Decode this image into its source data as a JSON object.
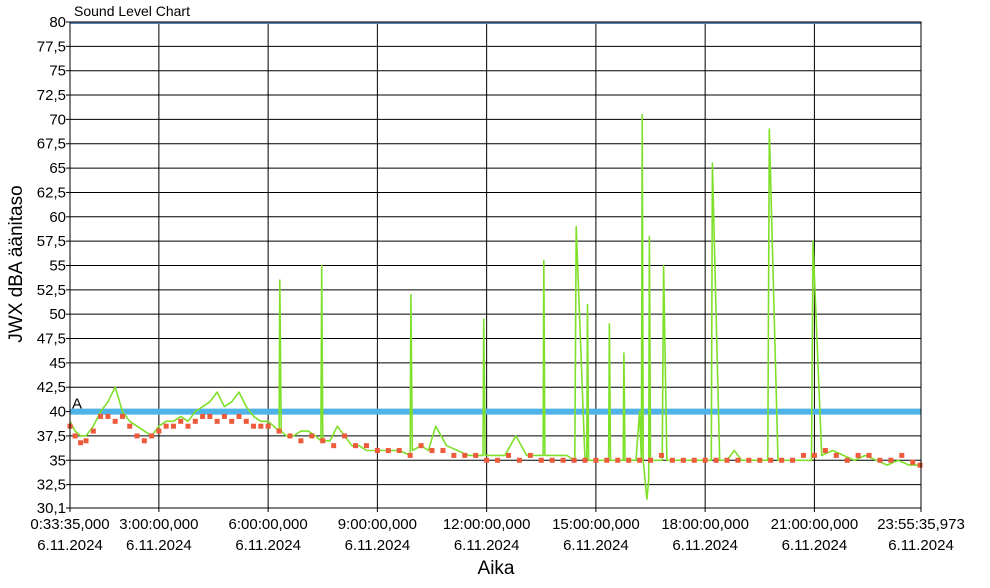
{
  "chart_data": {
    "type": "line",
    "title": "Sound Level Chart",
    "xlabel": "Aika",
    "ylabel": "JWX dBA äänitaso",
    "ylim": [
      30.1,
      80
    ],
    "y_ticks": [
      "30,1",
      "32,5",
      "35",
      "37,5",
      "40",
      "42,5",
      "45",
      "47,5",
      "50",
      "52,5",
      "55",
      "57,5",
      "60",
      "62,5",
      "65",
      "67,5",
      "70",
      "72,5",
      "75",
      "77,5",
      "80"
    ],
    "y_tick_values": [
      30.1,
      32.5,
      35,
      37.5,
      40,
      42.5,
      45,
      47.5,
      50,
      52.5,
      55,
      57.5,
      60,
      62.5,
      65,
      67.5,
      70,
      72.5,
      75,
      77.5,
      80
    ],
    "x_range_hours": [
      0.5597,
      23.9267
    ],
    "x_ticks": [
      {
        "time": "0:33:35,000",
        "date": "6.11.2024",
        "hour": 0.5597
      },
      {
        "time": "3:00:00,000",
        "date": "6.11.2024",
        "hour": 3
      },
      {
        "time": "6:00:00,000",
        "date": "6.11.2024",
        "hour": 6
      },
      {
        "time": "9:00:00,000",
        "date": "6.11.2024",
        "hour": 9
      },
      {
        "time": "12:00:00,000",
        "date": "6.11.2024",
        "hour": 12
      },
      {
        "time": "15:00:00,000",
        "date": "6.11.2024",
        "hour": 15
      },
      {
        "time": "18:00:00,000",
        "date": "6.11.2024",
        "hour": 18
      },
      {
        "time": "21:00:00,000",
        "date": "6.11.2024",
        "hour": 21
      },
      {
        "time": "23:55:35,973",
        "date": "6.11.2024",
        "hour": 23.9267
      }
    ],
    "threshold": {
      "value": 40,
      "label": "A",
      "color": "#4fb3e8"
    },
    "grid": true,
    "colors": {
      "line": "#7fe02a",
      "marker": "#ee5a3c",
      "grid": "#000000",
      "top_line": "#5a7fb0"
    },
    "series": [
      {
        "kind": "peak-line",
        "x": [
          0.56,
          0.7,
          0.85,
          1.0,
          1.2,
          1.4,
          1.6,
          1.8,
          2.0,
          2.2,
          2.4,
          2.6,
          2.8,
          3.0,
          3.2,
          3.4,
          3.6,
          3.8,
          4.0,
          4.2,
          4.4,
          4.6,
          4.8,
          5.0,
          5.2,
          5.4,
          5.6,
          5.8,
          6.0,
          6.15,
          6.3,
          6.32,
          6.36,
          6.5,
          6.7,
          6.9,
          7.1,
          7.3,
          7.45,
          7.47,
          7.5,
          7.7,
          7.9,
          8.1,
          8.3,
          8.5,
          8.7,
          8.9,
          9.1,
          9.3,
          9.6,
          9.9,
          9.92,
          9.96,
          10.2,
          10.4,
          10.6,
          10.9,
          11.2,
          11.5,
          11.9,
          11.92,
          11.96,
          12.2,
          12.5,
          12.8,
          13.1,
          13.4,
          13.55,
          13.57,
          13.6,
          13.9,
          14.2,
          14.4,
          14.42,
          14.46,
          14.7,
          14.75,
          14.77,
          14.8,
          15.1,
          15.3,
          15.35,
          15.37,
          15.4,
          15.6,
          15.75,
          15.77,
          15.8,
          16.0,
          16.1,
          16.2,
          16.25,
          16.27,
          16.3,
          16.4,
          16.45,
          16.47,
          16.5,
          16.7,
          16.8,
          16.82,
          16.86,
          16.95,
          16.97,
          17.0,
          17.2,
          17.4,
          17.6,
          17.8,
          18.0,
          18.15,
          18.17,
          18.2,
          18.4,
          18.6,
          18.8,
          19.0,
          19.2,
          19.5,
          19.7,
          19.72,
          19.76,
          20.0,
          20.3,
          20.6,
          20.9,
          20.92,
          20.96,
          21.2,
          21.5,
          21.8,
          22.1,
          22.4,
          22.7,
          23.0,
          23.3,
          23.6,
          23.9
        ],
        "y": [
          39,
          38,
          37.5,
          37.5,
          38.5,
          40,
          41,
          42.5,
          40,
          39,
          38.5,
          38,
          37.5,
          38.5,
          39,
          39,
          39.5,
          39,
          40,
          40.5,
          41,
          42,
          40.5,
          41,
          42,
          40.5,
          39.5,
          39,
          39,
          38.5,
          38,
          53.5,
          38,
          37.5,
          37.5,
          38,
          38,
          37.5,
          37,
          55,
          37,
          37,
          38.5,
          37.5,
          36.5,
          36.5,
          36,
          36,
          36,
          36,
          36,
          35.5,
          52,
          36,
          36.5,
          36,
          38.5,
          36.5,
          36,
          35.5,
          35.5,
          49.5,
          35.5,
          35.5,
          35.5,
          37.5,
          35.5,
          35.5,
          35.5,
          55.5,
          35.5,
          35.5,
          35.5,
          35,
          35,
          59,
          35,
          35,
          51,
          35,
          35,
          35,
          35,
          49,
          35,
          35,
          35,
          46,
          35,
          35,
          35,
          40,
          35,
          70.5,
          35,
          31,
          33,
          58,
          35,
          35,
          35,
          35,
          55,
          35,
          35,
          35,
          35,
          35,
          35,
          35,
          35,
          35,
          35,
          65.5,
          35,
          35,
          36,
          35,
          35,
          35,
          35,
          35,
          69,
          35,
          35,
          35,
          35,
          35,
          57.5,
          35.5,
          36,
          35.5,
          35,
          35.5,
          35,
          34.5,
          35,
          34.5,
          34.5
        ]
      },
      {
        "kind": "markers",
        "x": [
          0.56,
          0.7,
          0.85,
          1.0,
          1.2,
          1.4,
          1.6,
          1.8,
          2.0,
          2.2,
          2.4,
          2.6,
          2.8,
          3.0,
          3.2,
          3.4,
          3.6,
          3.8,
          4.0,
          4.2,
          4.4,
          4.6,
          4.8,
          5.0,
          5.2,
          5.4,
          5.6,
          5.8,
          6.0,
          6.3,
          6.6,
          6.9,
          7.2,
          7.5,
          7.8,
          8.1,
          8.4,
          8.7,
          9.0,
          9.3,
          9.6,
          9.9,
          10.2,
          10.5,
          10.8,
          11.1,
          11.4,
          11.7,
          12.0,
          12.3,
          12.6,
          12.9,
          13.2,
          13.5,
          13.8,
          14.1,
          14.4,
          14.7,
          15.0,
          15.3,
          15.6,
          15.9,
          16.2,
          16.5,
          16.8,
          17.1,
          17.4,
          17.7,
          18.0,
          18.3,
          18.6,
          18.9,
          19.2,
          19.5,
          19.8,
          20.1,
          20.4,
          20.7,
          21.0,
          21.3,
          21.6,
          21.9,
          22.2,
          22.5,
          22.8,
          23.1,
          23.4,
          23.7,
          23.9
        ],
        "y": [
          38.5,
          37.5,
          36.8,
          37,
          38,
          39.5,
          39.5,
          39,
          39.5,
          38.5,
          37.5,
          37,
          37.5,
          38,
          38.5,
          38.5,
          39,
          38.5,
          39,
          39.5,
          39.5,
          39,
          39.5,
          39,
          39.5,
          39,
          38.5,
          38.5,
          38.5,
          38,
          37.5,
          37,
          37.5,
          37,
          36.5,
          37.5,
          36.5,
          36.5,
          36,
          36,
          36,
          35.5,
          36.5,
          36,
          36,
          35.5,
          35.5,
          35.5,
          35,
          35,
          35.5,
          35,
          35.5,
          35,
          35,
          35,
          35,
          35,
          35,
          35,
          35,
          35,
          35,
          35,
          35.5,
          35,
          35,
          35,
          35,
          35,
          35,
          35,
          35,
          35,
          35,
          35,
          35,
          35.5,
          35.5,
          36,
          35.5,
          35,
          35.5,
          35.5,
          35,
          35,
          35.5,
          34.8,
          34.5
        ]
      }
    ]
  }
}
